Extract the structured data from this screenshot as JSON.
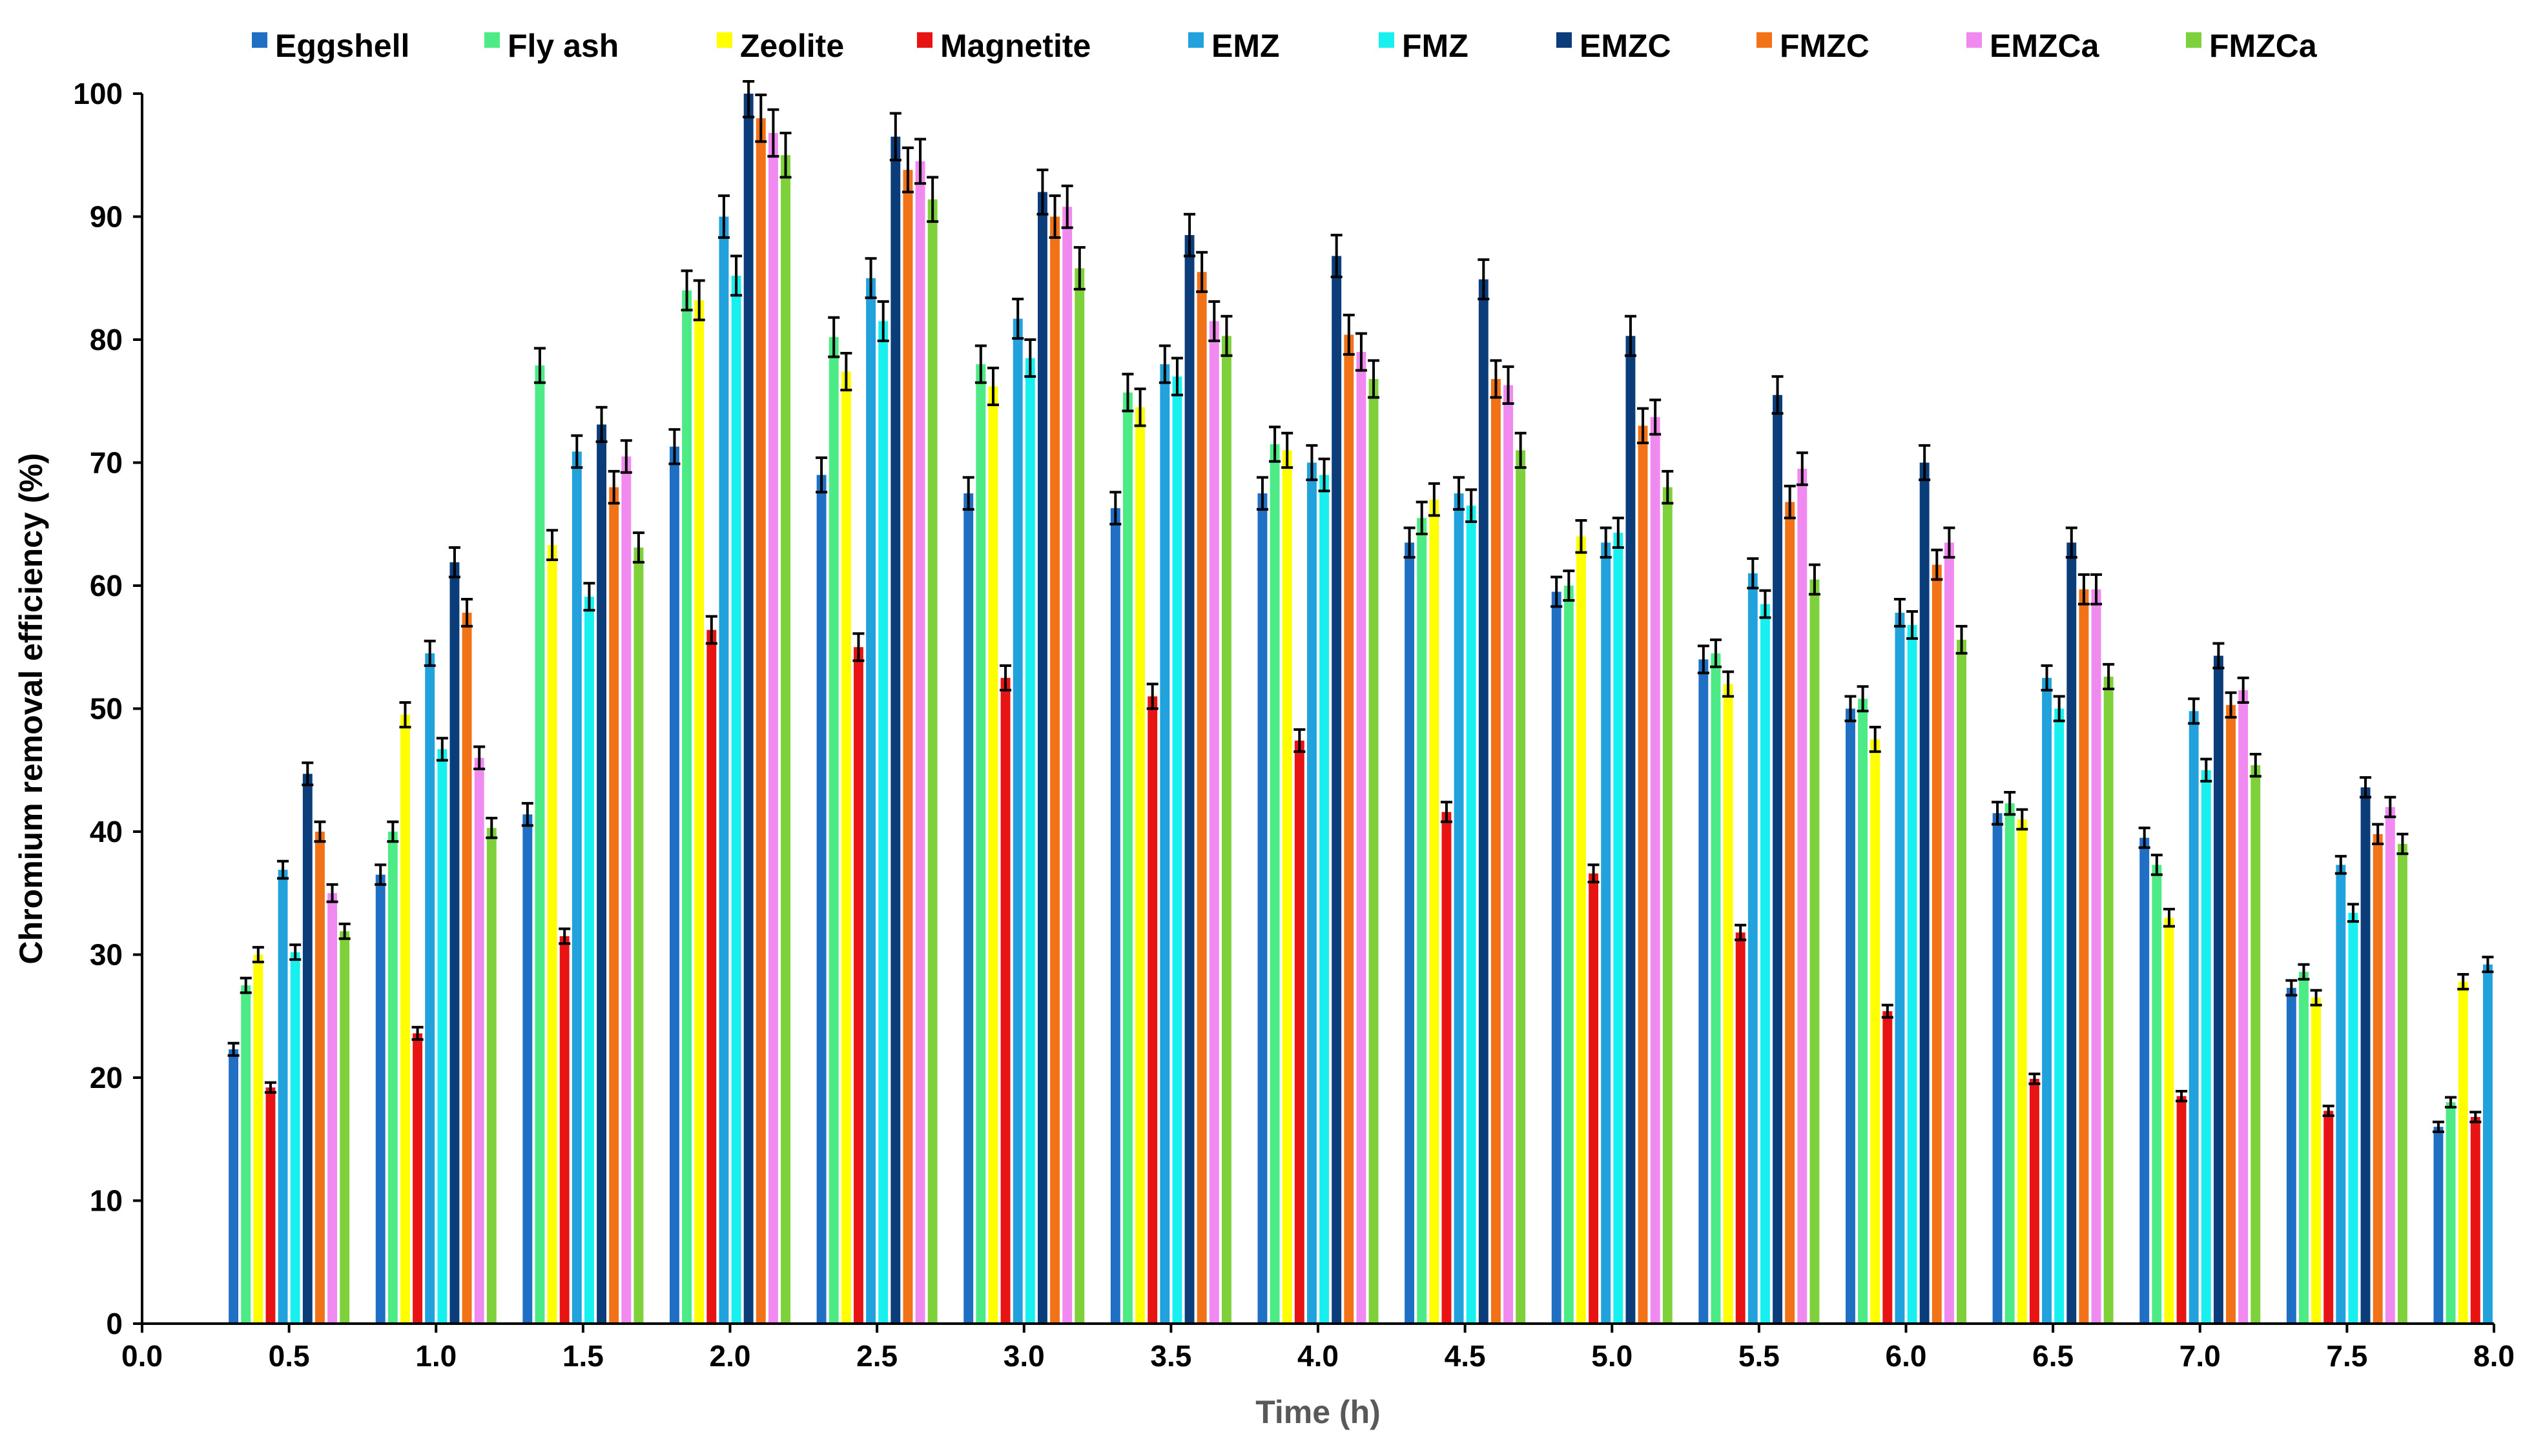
{
  "chart_data": {
    "type": "bar",
    "title": "",
    "xlabel": "Time (h)",
    "ylabel": "Chromium removal efficiency (%)",
    "xlim": [
      0.0,
      8.0
    ],
    "ylim": [
      0,
      100
    ],
    "xticks": [
      "0.0",
      "0.5",
      "1.0",
      "1.5",
      "2.0",
      "2.5",
      "3.0",
      "3.5",
      "4.0",
      "4.5",
      "5.0",
      "5.5",
      "6.0",
      "6.5",
      "7.0",
      "7.5",
      "8.0"
    ],
    "yticks": [
      "0",
      "10",
      "20",
      "30",
      "40",
      "50",
      "60",
      "70",
      "80",
      "90",
      "100"
    ],
    "grid": false,
    "legend_position": "top",
    "error_bars": true,
    "categories": [
      0.5,
      1.0,
      1.5,
      2.0,
      2.5,
      3.0,
      3.5,
      4.0,
      4.5,
      5.0,
      5.5,
      6.0,
      6.5,
      7.0,
      7.5,
      8.0
    ],
    "series": [
      {
        "name": "Eggshell",
        "color": "#1F6FC5",
        "values": [
          22.3,
          36.5,
          41.4,
          71.3,
          69.0,
          67.5,
          66.3,
          67.5,
          63.5,
          59.5,
          54.0,
          50.0,
          41.5,
          39.5,
          27.3,
          16.0
        ],
        "errors": [
          0.5,
          0.8,
          0.9,
          1.4,
          1.4,
          1.3,
          1.3,
          1.3,
          1.2,
          1.2,
          1.1,
          1.0,
          0.9,
          0.8,
          0.6,
          0.4
        ]
      },
      {
        "name": "Fly ash",
        "color": "#4DEB86",
        "values": [
          27.5,
          40.0,
          77.9,
          84.0,
          80.2,
          78.0,
          75.7,
          71.5,
          65.5,
          60.0,
          54.5,
          50.8,
          42.3,
          37.3,
          28.6,
          18.0
        ],
        "errors": [
          0.6,
          0.8,
          1.4,
          1.6,
          1.6,
          1.5,
          1.5,
          1.4,
          1.3,
          1.2,
          1.1,
          1.0,
          0.9,
          0.8,
          0.6,
          0.4
        ]
      },
      {
        "name": "Zeolite",
        "color": "#FFFF00",
        "values": [
          30.0,
          49.5,
          63.3,
          83.2,
          77.4,
          76.2,
          74.5,
          71.0,
          67.0,
          64.0,
          52.0,
          47.5,
          41.0,
          33.0,
          26.5,
          27.8
        ],
        "errors": [
          0.6,
          1.0,
          1.2,
          1.6,
          1.5,
          1.5,
          1.5,
          1.4,
          1.3,
          1.3,
          1.0,
          1.0,
          0.8,
          0.7,
          0.6,
          0.6
        ]
      },
      {
        "name": "Magnetite",
        "color": "#E81313",
        "values": [
          19.2,
          23.6,
          31.5,
          56.4,
          55.0,
          52.5,
          51.0,
          47.4,
          41.6,
          36.6,
          31.8,
          25.4,
          19.9,
          18.5,
          17.3,
          16.8
        ],
        "errors": [
          0.4,
          0.5,
          0.6,
          1.1,
          1.1,
          1.0,
          1.0,
          0.9,
          0.8,
          0.7,
          0.6,
          0.5,
          0.4,
          0.4,
          0.4,
          0.4
        ]
      },
      {
        "name": "EMZ",
        "color": "#22A2DC",
        "values": [
          36.9,
          54.5,
          70.9,
          90.0,
          85.0,
          81.7,
          78.0,
          70.0,
          67.5,
          63.5,
          61.0,
          57.8,
          52.5,
          49.8,
          37.3,
          29.2
        ],
        "errors": [
          0.7,
          1.0,
          1.3,
          1.7,
          1.6,
          1.6,
          1.5,
          1.4,
          1.3,
          1.2,
          1.2,
          1.1,
          1.0,
          1.0,
          0.7,
          0.6
        ]
      },
      {
        "name": "FMZ",
        "color": "#18F0F0",
        "values": [
          30.2,
          46.7,
          59.1,
          85.2,
          81.5,
          78.5,
          77.0,
          69.0,
          66.5,
          64.3,
          58.5,
          56.8,
          50.0,
          45.0,
          33.4,
          null
        ],
        "errors": [
          0.6,
          0.9,
          1.1,
          1.6,
          1.6,
          1.5,
          1.5,
          1.3,
          1.3,
          1.2,
          1.1,
          1.1,
          1.0,
          0.9,
          0.7,
          null
        ]
      },
      {
        "name": "EMZC",
        "color": "#0A3D7A",
        "values": [
          44.7,
          61.9,
          73.1,
          100.0,
          96.5,
          92.0,
          88.5,
          86.8,
          84.9,
          80.3,
          75.5,
          70.0,
          63.5,
          54.3,
          43.6,
          null
        ],
        "errors": [
          0.9,
          1.2,
          1.4,
          1.9,
          1.9,
          1.8,
          1.7,
          1.7,
          1.6,
          1.6,
          1.5,
          1.4,
          1.2,
          1.0,
          0.8,
          null
        ]
      },
      {
        "name": "FMZC",
        "color": "#F27218",
        "values": [
          40.0,
          57.8,
          68.0,
          98.0,
          93.8,
          90.0,
          85.5,
          80.4,
          76.8,
          73.0,
          66.8,
          61.7,
          59.7,
          50.3,
          39.8,
          null
        ],
        "errors": [
          0.8,
          1.1,
          1.3,
          1.9,
          1.8,
          1.7,
          1.6,
          1.6,
          1.5,
          1.4,
          1.3,
          1.2,
          1.2,
          1.0,
          0.8,
          null
        ]
      },
      {
        "name": "EMZCa",
        "color": "#F08AF0",
        "values": [
          35.0,
          46.0,
          70.5,
          96.8,
          94.5,
          90.8,
          81.5,
          79.0,
          76.3,
          73.7,
          69.5,
          63.5,
          59.7,
          51.5,
          42.0,
          null
        ],
        "errors": [
          0.7,
          0.9,
          1.3,
          1.9,
          1.8,
          1.7,
          1.6,
          1.5,
          1.5,
          1.4,
          1.3,
          1.2,
          1.2,
          1.0,
          0.8,
          null
        ]
      },
      {
        "name": "FMZCa",
        "color": "#7FD13B",
        "values": [
          31.9,
          40.3,
          63.1,
          95.0,
          91.4,
          85.8,
          80.3,
          76.8,
          71.0,
          68.0,
          60.5,
          55.6,
          52.6,
          45.4,
          39.0,
          null
        ],
        "errors": [
          0.6,
          0.8,
          1.2,
          1.8,
          1.8,
          1.7,
          1.6,
          1.5,
          1.4,
          1.3,
          1.2,
          1.1,
          1.0,
          0.9,
          0.8,
          null
        ]
      }
    ]
  }
}
